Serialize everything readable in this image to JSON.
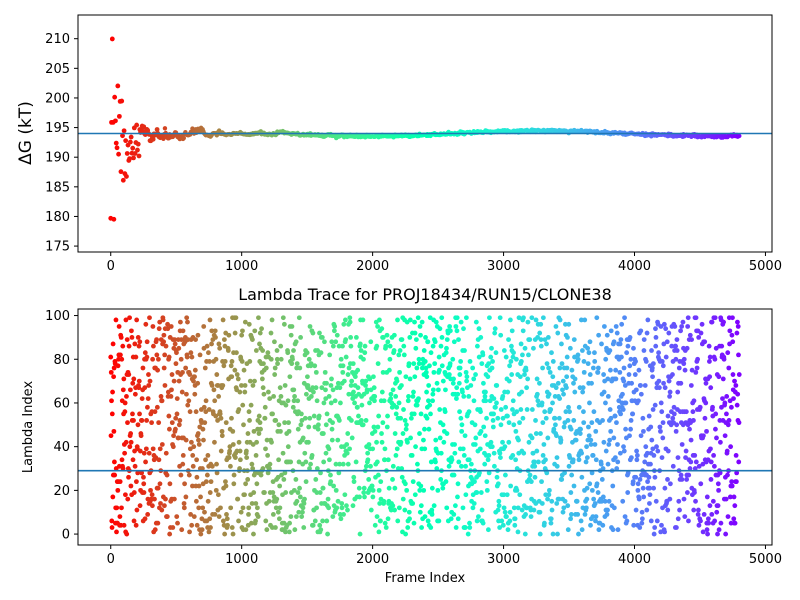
{
  "chart_data": [
    {
      "type": "scatter",
      "title": "",
      "xlabel": "",
      "ylabel": "ΔG (kT)",
      "xlim": [
        -250,
        5050
      ],
      "ylim": [
        174,
        214
      ],
      "x_ticks": [
        0,
        1000,
        2000,
        3000,
        4000,
        5000
      ],
      "y_ticks": [
        175,
        180,
        185,
        190,
        195,
        200,
        205,
        210
      ],
      "hline": 194,
      "hline_color": "#1f77b4",
      "colormap": "rainbow",
      "color_direction": "red-to-violet with frame index",
      "frames": 4800,
      "converged_value": 194,
      "grid": false
    },
    {
      "type": "scatter",
      "title": "Lambda Trace for PROJ18434/RUN15/CLONE38",
      "xlabel": "Frame Index",
      "ylabel": "Lambda Index",
      "xlim": [
        -250,
        5050
      ],
      "ylim": [
        -5,
        103
      ],
      "x_ticks": [
        0,
        1000,
        2000,
        3000,
        4000,
        5000
      ],
      "y_ticks": [
        0,
        20,
        40,
        60,
        80,
        100
      ],
      "hline": 29,
      "hline_color": "#1f77b4",
      "colormap": "rainbow",
      "lambda_range": [
        0,
        99
      ],
      "frames": 4800,
      "grid": false
    }
  ],
  "colors": {
    "hline": "#1f77b4",
    "axis": "#000000",
    "background": "#ffffff"
  }
}
